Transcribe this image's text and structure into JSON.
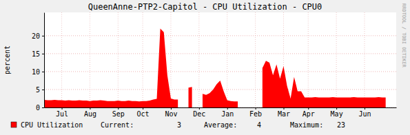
{
  "chart_data": {
    "type": "area",
    "title": "QueenAnne-PTP2-Capitol - CPU Utilization - CPU0",
    "y_label": "percent",
    "watermark": "RRDTOOL / TOBI OETIKER",
    "categories": [
      null,
      null,
      null,
      null,
      null,
      "Jul",
      null,
      null,
      null,
      null,
      null,
      null,
      null,
      "Aug",
      null,
      null,
      null,
      null,
      null,
      null,
      null,
      "Sep",
      null,
      null,
      null,
      null,
      null,
      null,
      "Oct",
      null,
      null,
      null,
      null,
      null,
      null,
      null,
      "Nov",
      null,
      null,
      null,
      null,
      null,
      null,
      null,
      "Dec",
      null,
      null,
      null,
      null,
      null,
      null,
      null,
      "Jan",
      null,
      null,
      null,
      null,
      null,
      null,
      null,
      "Feb",
      null,
      null,
      null,
      null,
      null,
      null,
      null,
      "Mar",
      null,
      null,
      null,
      null,
      null,
      null,
      "Apr",
      null,
      null,
      null,
      null,
      null,
      null,
      null,
      "May",
      null,
      null,
      null,
      null,
      null,
      null,
      null,
      "Jun",
      null,
      null,
      null,
      null,
      null,
      null,
      null,
      null,
      null
    ],
    "series": [
      {
        "name": "CPU Utilization",
        "color": "#ff0000",
        "values": [
          2.1,
          2.0,
          2.0,
          2.1,
          2.0,
          2.0,
          1.9,
          2.0,
          1.9,
          1.9,
          2.0,
          1.9,
          1.9,
          1.8,
          1.9,
          1.9,
          2.0,
          1.9,
          1.8,
          1.8,
          1.8,
          1.9,
          1.8,
          1.8,
          1.9,
          1.8,
          1.8,
          1.7,
          1.8,
          1.8,
          1.9,
          2.2,
          2.4,
          22,
          21,
          9,
          2.5,
          2.2,
          2.2,
          null,
          null,
          5.5,
          5.7,
          null,
          null,
          3.8,
          3.5,
          4.0,
          5.0,
          6.5,
          7.5,
          4.5,
          2.0,
          1.8,
          1.7,
          1.7,
          null,
          null,
          null,
          null,
          null,
          null,
          11,
          13,
          12.5,
          9,
          12,
          8,
          11.5,
          6,
          2.5,
          8.5,
          4.5,
          4.5,
          2.8,
          2.8,
          2.8,
          2.9,
          2.8,
          2.8,
          2.8,
          2.8,
          2.9,
          2.8,
          2.8,
          2.8,
          2.8,
          2.8,
          2.9,
          2.8,
          2.8,
          2.8,
          2.8,
          2.8,
          2.8,
          2.9,
          2.8,
          2.8,
          null,
          null,
          null
        ]
      }
    ],
    "stats": [
      {
        "label": "Current:",
        "value": 3
      },
      {
        "label": "Average:",
        "value": 4
      },
      {
        "label": "Maximum:",
        "value": 23
      }
    ],
    "ylim": [
      0,
      26.5
    ],
    "yticks": [
      0,
      5,
      10,
      15,
      20
    ],
    "grid": true,
    "legend": "bottom"
  }
}
